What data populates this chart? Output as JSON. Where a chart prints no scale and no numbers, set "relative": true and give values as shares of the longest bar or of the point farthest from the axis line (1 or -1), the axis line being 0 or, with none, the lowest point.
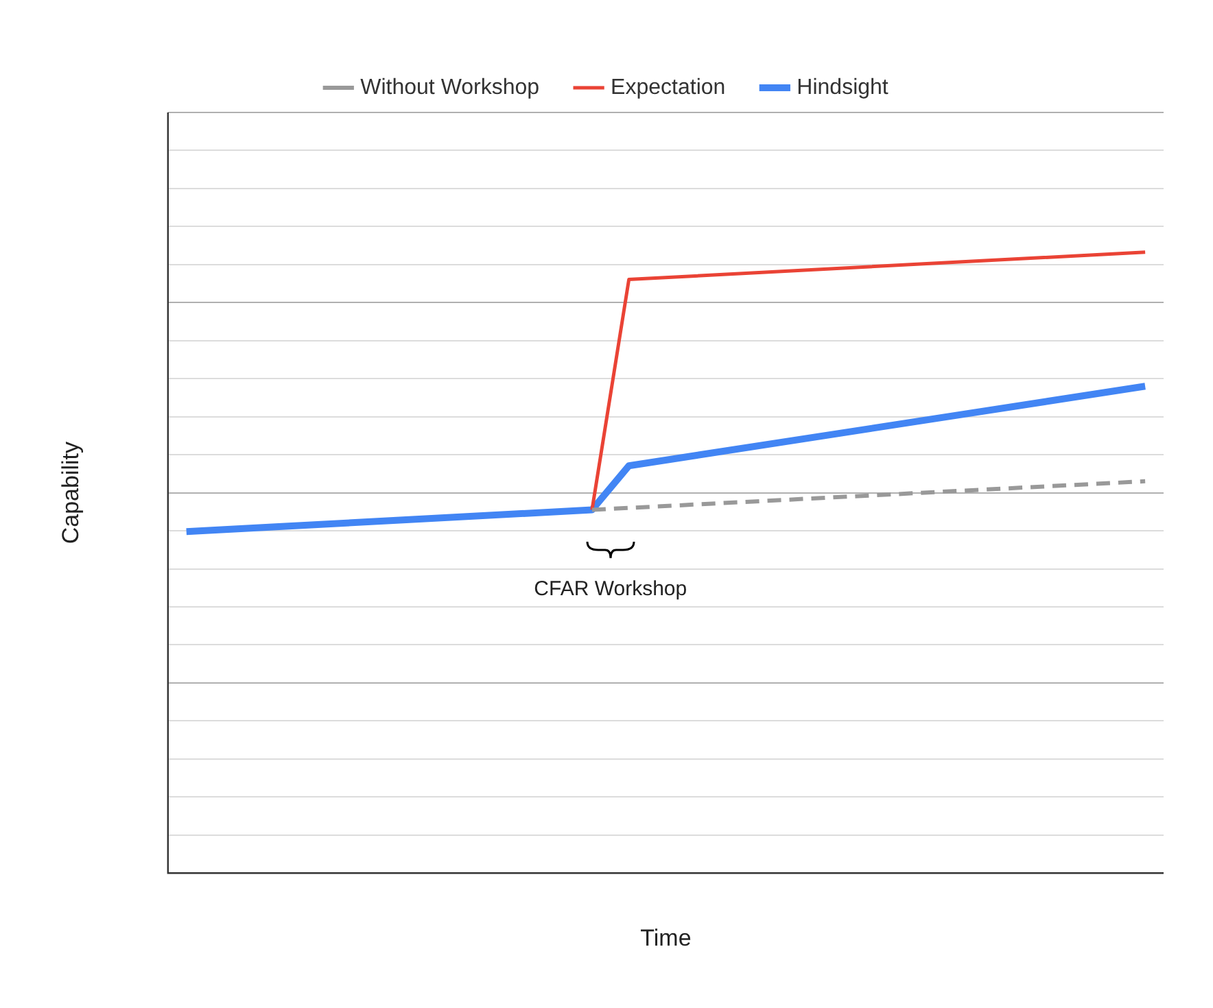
{
  "chart_data": {
    "type": "line",
    "relative": true,
    "xlabel": "Time",
    "ylabel": "Capability",
    "grid": "y",
    "legend": "top",
    "line_style": "solid",
    "marker": "none",
    "categories": [
      null,
      null,
      null,
      null,
      null,
      null,
      null,
      null,
      null,
      null,
      null,
      null,
      null,
      null,
      null,
      null,
      null,
      null,
      null,
      null,
      null,
      null,
      null,
      null,
      null,
      null,
      null
    ],
    "series": [
      {
        "name": "Without Workshop",
        "color": "#999999",
        "line_style": "dashed",
        "values": [
          null,
          null,
          null,
          null,
          null,
          null,
          null,
          null,
          null,
          null,
          null,
          0.585,
          null,
          null,
          null,
          null,
          null,
          null,
          null,
          null,
          null,
          null,
          null,
          null,
          null,
          null,
          0.631
        ]
      },
      {
        "name": "Expectation",
        "color": "#ea4335",
        "values": [
          null,
          null,
          null,
          null,
          null,
          null,
          null,
          null,
          null,
          null,
          null,
          0.585,
          0.956,
          null,
          null,
          null,
          null,
          null,
          null,
          null,
          null,
          null,
          null,
          null,
          null,
          null,
          1
        ]
      },
      {
        "name": "Hindsight",
        "color": "#4285f4",
        "values": [
          0.55,
          null,
          null,
          null,
          null,
          null,
          null,
          null,
          null,
          null,
          null,
          0.585,
          0.656,
          null,
          null,
          null,
          null,
          null,
          null,
          null,
          null,
          null,
          null,
          null,
          null,
          null,
          0.784
        ]
      }
    ],
    "annotations": [
      "CFAR Workshop"
    ]
  }
}
